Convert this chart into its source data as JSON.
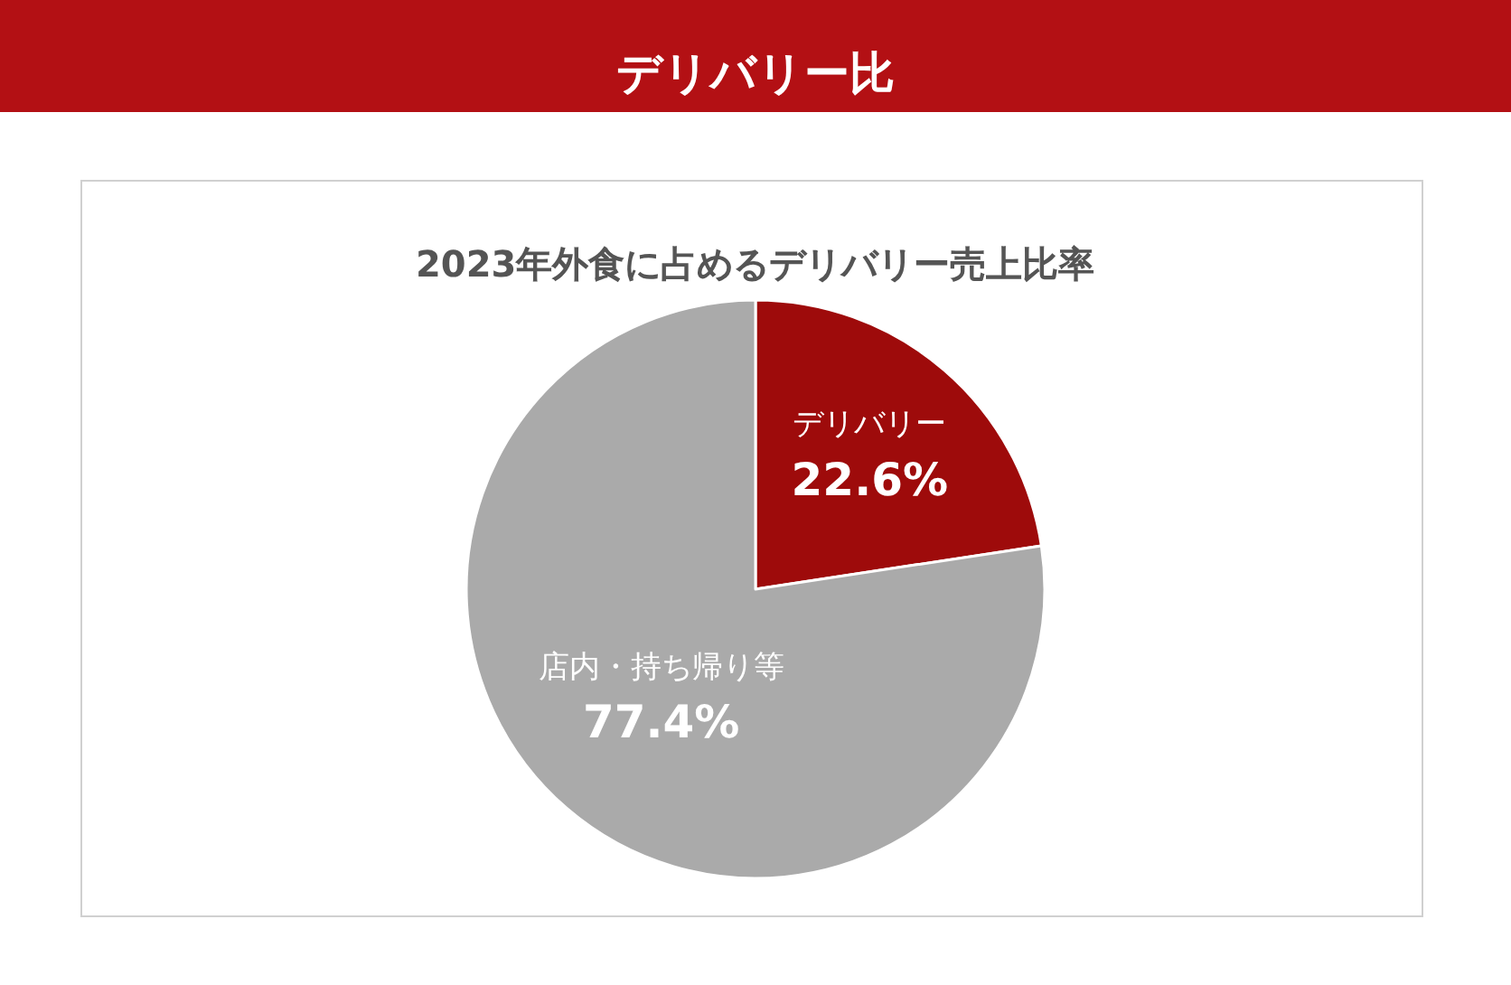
{
  "chart_data": {
    "type": "pie",
    "title": "デリバリー比",
    "subtitle": "2023年外食に占めるデリバリー売上比率",
    "categories": [
      "デリバリー",
      "店内・持ち帰り等"
    ],
    "values": [
      22.6,
      77.4
    ],
    "colors": [
      "#9e0b0b",
      "#aaaaaa"
    ],
    "value_labels": [
      "22.6%",
      "77.4%"
    ],
    "legend": false
  }
}
